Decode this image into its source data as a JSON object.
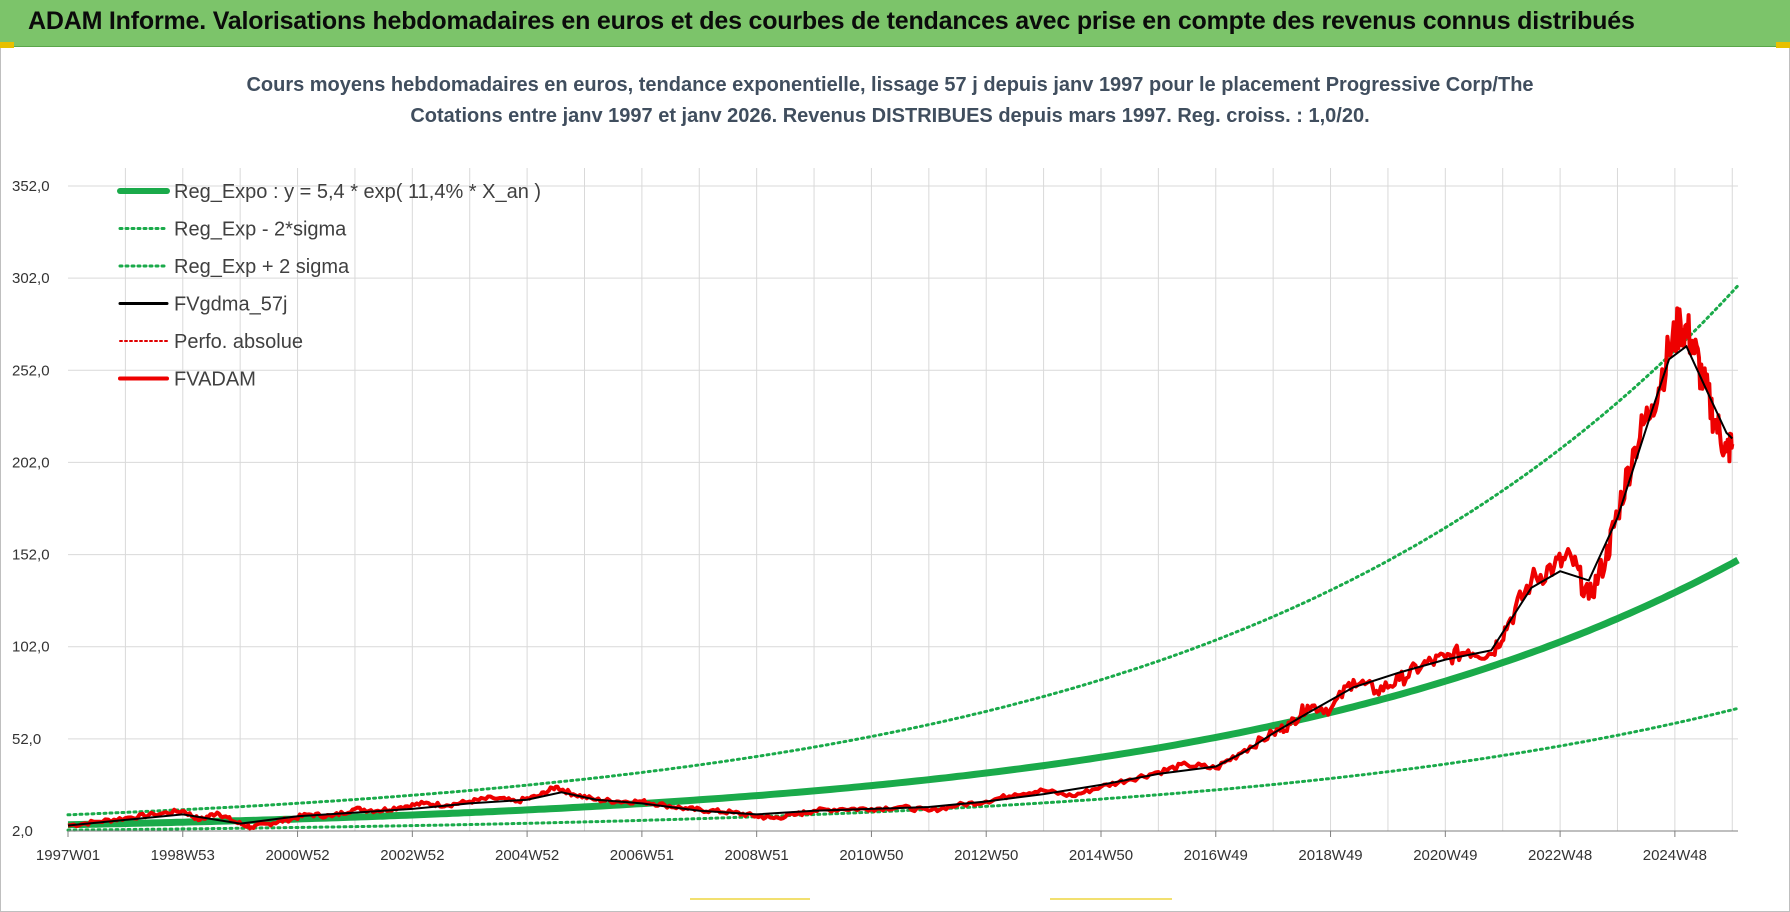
{
  "header": {
    "title": "ADAM Informe. Valorisations hebdomadaires en euros et des courbes de tendances avec prise en compte des revenus connus distribués"
  },
  "colors": {
    "banner": "#7cc46a",
    "reg_expo": "#1aaa4a",
    "sigma": "#1aaa4a",
    "fvgdma": "#000000",
    "perfo": "#e00000",
    "fvadam": "#ee0000",
    "grid": "#d9d9d9"
  },
  "chart_data": {
    "type": "line",
    "title_lines": [
      "Cours moyens hebdomadaires en euros, tendance exponentielle, lissage 57 j depuis janv 1997  pour le placement Progressive Corp/The",
      "Cotations entre janv 1997 et janv 2026. Revenus DISTRIBUES depuis mars 1997.  Reg. croiss. : 1,0/20."
    ],
    "x_tick_labels": [
      "1997W01",
      "1998W53",
      "2000W52",
      "2002W52",
      "2004W52",
      "2006W51",
      "2008W51",
      "2010W50",
      "2012W50",
      "2014W50",
      "2016W49",
      "2018W49",
      "2020W49",
      "2022W48",
      "2024W48"
    ],
    "xlim": [
      1997.0,
      2026.1
    ],
    "ylim": [
      2.0,
      352.0
    ],
    "y_ticks": [
      "2,0",
      "52,0",
      "102,0",
      "152,0",
      "202,0",
      "252,0",
      "302,0",
      "352,0"
    ],
    "y_tick_values": [
      2,
      52,
      102,
      152,
      202,
      252,
      302,
      352
    ],
    "legend": [
      {
        "key": "reg_expo",
        "label": "Reg_Expo : y = 5,4 * exp( 11,4% *  X_an )"
      },
      {
        "key": "minus2",
        "label": "Reg_Exp - 2*sigma"
      },
      {
        "key": "plus2",
        "label": "Reg_Exp + 2 sigma"
      },
      {
        "key": "fvgdma",
        "label": "FVgdma_57j"
      },
      {
        "key": "perfo",
        "label": "Perfo. absolue"
      },
      {
        "key": "fvadam",
        "label": "FVADAM"
      }
    ],
    "regression": {
      "a": 5.4,
      "b": 0.114,
      "plus_factor": 2.0,
      "minus_factor": 0.46
    },
    "series_fvadam": {
      "x": [
        1997.0,
        1997.5,
        1998.0,
        1998.5,
        1999.0,
        1999.3,
        1999.6,
        1999.9,
        2000.2,
        2000.5,
        2000.8,
        2001.2,
        2001.6,
        2002.0,
        2002.4,
        2002.8,
        2003.2,
        2003.6,
        2004.0,
        2004.4,
        2004.8,
        2005.2,
        2005.5,
        2005.8,
        2006.2,
        2006.6,
        2007.0,
        2007.4,
        2007.8,
        2008.2,
        2008.6,
        2009.0,
        2009.3,
        2009.7,
        2010.0,
        2010.5,
        2011.0,
        2011.5,
        2012.0,
        2012.5,
        2013.0,
        2013.5,
        2014.0,
        2014.5,
        2015.0,
        2015.5,
        2016.0,
        2016.5,
        2017.0,
        2017.5,
        2018.0,
        2018.3,
        2018.6,
        2019.0,
        2019.4,
        2019.8,
        2020.2,
        2020.6,
        2021.0,
        2021.4,
        2021.8,
        2022.1,
        2022.5,
        2022.9,
        2023.2,
        2023.5,
        2023.8,
        2024.0,
        2024.3,
        2024.6,
        2024.9,
        2025.1,
        2025.3,
        2025.5,
        2025.7,
        2025.9,
        2026.0
      ],
      "y": [
        5,
        7,
        9,
        11,
        13,
        8,
        12,
        7,
        4,
        6,
        8,
        11,
        10,
        14,
        13,
        15,
        17,
        16,
        18,
        20,
        18,
        21,
        26,
        22,
        19,
        18,
        18,
        16,
        14,
        13,
        12,
        10,
        9,
        11,
        13,
        14,
        14,
        15,
        13,
        16,
        18,
        22,
        24,
        21,
        26,
        30,
        34,
        38,
        36,
        46,
        55,
        60,
        70,
        68,
        84,
        78,
        84,
        92,
        96,
        100,
        98,
        115,
        138,
        146,
        150,
        128,
        150,
        175,
        210,
        233,
        262,
        278,
        268,
        245,
        225,
        208,
        212
      ]
    },
    "series_fvgdma": {
      "x": [
        1997.0,
        1998.0,
        1999.0,
        2000.0,
        2001.0,
        2002.0,
        2003.0,
        2004.0,
        2005.0,
        2005.6,
        2006.2,
        2007.0,
        2008.0,
        2009.0,
        2010.0,
        2011.0,
        2012.0,
        2013.0,
        2014.0,
        2015.0,
        2016.0,
        2017.0,
        2017.5,
        2018.0,
        2018.6,
        2019.4,
        2020.2,
        2021.0,
        2021.8,
        2022.5,
        2023.0,
        2023.5,
        2024.0,
        2024.6,
        2024.9,
        2025.2,
        2025.6,
        2025.9,
        2026.0
      ],
      "y": [
        5,
        8,
        11,
        6,
        10,
        12,
        14,
        17,
        19,
        23,
        19,
        17,
        13,
        11,
        13,
        14,
        15,
        18,
        22,
        27,
        33,
        37,
        45,
        55,
        66,
        80,
        88,
        95,
        100,
        134,
        143,
        138,
        172,
        230,
        258,
        265,
        238,
        218,
        215
      ]
    }
  }
}
